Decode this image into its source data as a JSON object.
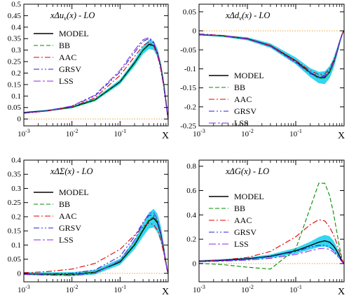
{
  "figure": {
    "x_axis_label": "X",
    "band_color": "#33d6f0",
    "model_color": "#000000"
  },
  "chart_data": [
    {
      "type": "line",
      "title": "xΔu_v(x) - LO",
      "title_parts": {
        "pre": "xΔu",
        "sub": "v",
        "post": "(x) - LO"
      },
      "xscale": "log",
      "xlim": [
        0.001,
        1
      ],
      "ylim": [
        -0.03,
        0.5
      ],
      "yticks": [
        0,
        0.05,
        0.1,
        0.15,
        0.2,
        0.25,
        0.3,
        0.35,
        0.4,
        0.45,
        0.5
      ],
      "ytick_labels": [
        "0",
        "0.05",
        "0.1",
        "0.15",
        "0.2",
        "0.25",
        "0.3",
        "0.35",
        "0.4",
        "0.45",
        "0.5"
      ],
      "xlabel": "X",
      "legend_position": "left",
      "reference_line": 0,
      "x": [
        0.001,
        0.003,
        0.01,
        0.03,
        0.1,
        0.2,
        0.3,
        0.4,
        0.5,
        0.6,
        0.7,
        0.8,
        0.9,
        0.95,
        1.0
      ],
      "band": {
        "lower": [
          0.025,
          0.033,
          0.047,
          0.077,
          0.152,
          0.23,
          0.283,
          0.305,
          0.3,
          0.27,
          0.22,
          0.15,
          0.07,
          0.03,
          0.0
        ],
        "upper": [
          0.031,
          0.04,
          0.056,
          0.09,
          0.172,
          0.258,
          0.318,
          0.345,
          0.34,
          0.305,
          0.245,
          0.17,
          0.08,
          0.035,
          0.0
        ]
      },
      "series": [
        {
          "name": "MODEL",
          "color": "#000000",
          "dash": "",
          "values": [
            0.028,
            0.036,
            0.051,
            0.083,
            0.162,
            0.245,
            0.3,
            0.325,
            0.32,
            0.288,
            0.232,
            0.16,
            0.075,
            0.032,
            0.0
          ]
        },
        {
          "name": "BB",
          "color": "#008c00",
          "dash": "6,3",
          "values": [
            0.027,
            0.035,
            0.05,
            0.082,
            0.16,
            0.242,
            0.298,
            0.322,
            0.318,
            0.285,
            0.23,
            0.158,
            0.074,
            0.031,
            0.0
          ]
        },
        {
          "name": "AAC",
          "color": "#e00000",
          "dash": "8,3,2,3",
          "values": [
            0.025,
            0.034,
            0.052,
            0.092,
            0.19,
            0.272,
            0.32,
            0.335,
            0.318,
            0.275,
            0.215,
            0.145,
            0.068,
            0.028,
            0.0
          ]
        },
        {
          "name": "GRSV",
          "color": "#2222dd",
          "dash": "8,3,2,3,2,3",
          "values": [
            0.026,
            0.036,
            0.056,
            0.1,
            0.205,
            0.29,
            0.338,
            0.35,
            0.33,
            0.285,
            0.222,
            0.148,
            0.07,
            0.029,
            0.0
          ]
        },
        {
          "name": "LSS",
          "color": "#8a2be2",
          "dash": "10,3,3,3",
          "values": [
            0.025,
            0.035,
            0.057,
            0.104,
            0.212,
            0.3,
            0.345,
            0.355,
            0.335,
            0.288,
            0.225,
            0.15,
            0.07,
            0.029,
            0.0
          ]
        }
      ]
    },
    {
      "type": "line",
      "title": "xΔd_v(x) - LO",
      "title_parts": {
        "pre": "xΔd",
        "sub": "v",
        "post": "(x) - LO"
      },
      "xscale": "log",
      "xlim": [
        0.001,
        1
      ],
      "ylim": [
        -0.25,
        0.07
      ],
      "yticks": [
        -0.25,
        -0.2,
        -0.15,
        -0.1,
        -0.05,
        0,
        0.05
      ],
      "ytick_labels": [
        "-0.25",
        "-0.2",
        "-0.15",
        "-0.1",
        "-0.05",
        "0",
        "0.05"
      ],
      "xlabel": "X",
      "legend_position": "bottom-center",
      "reference_line": 0,
      "x": [
        0.001,
        0.003,
        0.01,
        0.03,
        0.1,
        0.2,
        0.3,
        0.4,
        0.5,
        0.6,
        0.7,
        0.8,
        0.9,
        0.95,
        1.0
      ],
      "band": {
        "lower": [
          -0.012,
          -0.016,
          -0.025,
          -0.045,
          -0.088,
          -0.122,
          -0.138,
          -0.14,
          -0.125,
          -0.1,
          -0.07,
          -0.04,
          -0.015,
          -0.005,
          0.0
        ],
        "upper": [
          -0.008,
          -0.011,
          -0.017,
          -0.033,
          -0.07,
          -0.098,
          -0.108,
          -0.106,
          -0.093,
          -0.072,
          -0.048,
          -0.025,
          -0.008,
          -0.002,
          0.0
        ]
      },
      "series": [
        {
          "name": "MODEL",
          "color": "#000000",
          "dash": "",
          "values": [
            -0.01,
            -0.013,
            -0.021,
            -0.039,
            -0.079,
            -0.11,
            -0.123,
            -0.123,
            -0.109,
            -0.086,
            -0.059,
            -0.032,
            -0.011,
            -0.004,
            0.0
          ]
        },
        {
          "name": "BB",
          "color": "#008c00",
          "dash": "6,3",
          "values": [
            -0.01,
            -0.014,
            -0.022,
            -0.04,
            -0.08,
            -0.112,
            -0.125,
            -0.124,
            -0.11,
            -0.087,
            -0.06,
            -0.033,
            -0.012,
            -0.004,
            0.0
          ]
        },
        {
          "name": "AAC",
          "color": "#e00000",
          "dash": "8,3,2,3",
          "values": [
            -0.008,
            -0.012,
            -0.02,
            -0.038,
            -0.078,
            -0.105,
            -0.115,
            -0.113,
            -0.1,
            -0.08,
            -0.055,
            -0.03,
            -0.01,
            -0.003,
            0.0
          ]
        },
        {
          "name": "GRSV",
          "color": "#2222dd",
          "dash": "8,3,2,3,2,3",
          "values": [
            -0.009,
            -0.013,
            -0.021,
            -0.04,
            -0.082,
            -0.11,
            -0.12,
            -0.118,
            -0.104,
            -0.083,
            -0.057,
            -0.031,
            -0.011,
            -0.004,
            0.0
          ]
        },
        {
          "name": "LSS",
          "color": "#8a2be2",
          "dash": "10,3,3,3",
          "values": [
            -0.009,
            -0.013,
            -0.022,
            -0.041,
            -0.084,
            -0.113,
            -0.123,
            -0.12,
            -0.106,
            -0.084,
            -0.058,
            -0.031,
            -0.011,
            -0.004,
            0.0
          ]
        }
      ]
    },
    {
      "type": "line",
      "title": "xΔΣ(x) - LO",
      "title_parts": {
        "pre": "xΔΣ(x) - LO",
        "sub": "",
        "post": ""
      },
      "xscale": "log",
      "xlim": [
        0.001,
        1
      ],
      "ylim": [
        -0.03,
        0.4
      ],
      "yticks": [
        0,
        0.05,
        0.1,
        0.15,
        0.2,
        0.25,
        0.3,
        0.35,
        0.4
      ],
      "ytick_labels": [
        "0",
        "0.05",
        "0.1",
        "0.15",
        "0.2",
        "0.25",
        "0.3",
        "0.35",
        "0.4"
      ],
      "xlabel": "X",
      "legend_position": "left",
      "reference_line": 0,
      "x": [
        0.001,
        0.003,
        0.01,
        0.03,
        0.1,
        0.2,
        0.3,
        0.4,
        0.5,
        0.6,
        0.7,
        0.8,
        0.9,
        0.95,
        1.0
      ],
      "band": {
        "lower": [
          -0.006,
          -0.008,
          -0.01,
          -0.004,
          0.03,
          0.085,
          0.13,
          0.158,
          0.162,
          0.145,
          0.112,
          0.07,
          0.028,
          0.01,
          0.0
        ],
        "upper": [
          0.004,
          0.004,
          0.004,
          0.012,
          0.052,
          0.117,
          0.175,
          0.215,
          0.228,
          0.21,
          0.168,
          0.11,
          0.046,
          0.018,
          0.0
        ]
      },
      "series": [
        {
          "name": "MODEL",
          "color": "#000000",
          "dash": "",
          "values": [
            -0.002,
            -0.003,
            -0.004,
            0.004,
            0.04,
            0.1,
            0.152,
            0.186,
            0.195,
            0.178,
            0.14,
            0.09,
            0.037,
            0.014,
            0.0
          ]
        },
        {
          "name": "BB",
          "color": "#008c00",
          "dash": "6,3",
          "values": [
            -0.003,
            -0.004,
            -0.004,
            0.005,
            0.042,
            0.104,
            0.156,
            0.19,
            0.2,
            0.183,
            0.144,
            0.093,
            0.038,
            0.014,
            0.0
          ]
        },
        {
          "name": "AAC",
          "color": "#e00000",
          "dash": "8,3,2,3",
          "values": [
            0.002,
            0.006,
            0.015,
            0.035,
            0.085,
            0.135,
            0.165,
            0.178,
            0.172,
            0.152,
            0.118,
            0.076,
            0.031,
            0.011,
            0.0
          ]
        },
        {
          "name": "GRSV",
          "color": "#2222dd",
          "dash": "8,3,2,3,2,3",
          "values": [
            -0.002,
            -0.002,
            0.0,
            0.012,
            0.06,
            0.13,
            0.18,
            0.205,
            0.205,
            0.183,
            0.142,
            0.09,
            0.036,
            0.013,
            0.0
          ]
        },
        {
          "name": "LSS",
          "color": "#8a2be2",
          "dash": "10,3,3,3",
          "values": [
            -0.004,
            -0.006,
            -0.008,
            0.0,
            0.045,
            0.118,
            0.178,
            0.212,
            0.215,
            0.19,
            0.146,
            0.092,
            0.037,
            0.013,
            0.0
          ]
        }
      ]
    },
    {
      "type": "line",
      "title": "xΔG(x) - LO",
      "title_parts": {
        "pre": "xΔG(x) - LO",
        "sub": "",
        "post": ""
      },
      "xscale": "log",
      "xlim": [
        0.001,
        1
      ],
      "ylim": [
        -0.15,
        0.85
      ],
      "yticks": [
        0,
        0.2,
        0.4,
        0.6,
        0.8
      ],
      "ytick_labels": [
        "0",
        "0.2",
        "0.4",
        "0.6",
        "0.8"
      ],
      "xlabel": "X",
      "legend_position": "left",
      "reference_line": 0,
      "x": [
        0.001,
        0.003,
        0.01,
        0.03,
        0.1,
        0.2,
        0.3,
        0.4,
        0.5,
        0.6,
        0.7,
        0.8,
        0.9,
        0.95,
        1.0
      ],
      "band": {
        "lower": [
          0.012,
          0.018,
          0.028,
          0.045,
          0.082,
          0.115,
          0.135,
          0.14,
          0.128,
          0.105,
          0.076,
          0.046,
          0.018,
          0.007,
          0.0
        ],
        "upper": [
          0.028,
          0.036,
          0.05,
          0.075,
          0.128,
          0.18,
          0.218,
          0.235,
          0.225,
          0.19,
          0.14,
          0.085,
          0.032,
          0.012,
          0.0
        ]
      },
      "series": [
        {
          "name": "MODEL",
          "color": "#000000",
          "dash": "",
          "values": [
            0.02,
            0.027,
            0.039,
            0.06,
            0.105,
            0.148,
            0.176,
            0.187,
            0.176,
            0.147,
            0.108,
            0.065,
            0.025,
            0.009,
            0.0
          ]
        },
        {
          "name": "BB",
          "color": "#008c00",
          "dash": "6,3",
          "values": [
            0.002,
            -0.008,
            -0.03,
            -0.045,
            0.12,
            0.46,
            0.66,
            0.66,
            0.56,
            0.42,
            0.27,
            0.14,
            0.045,
            0.015,
            0.0
          ]
        },
        {
          "name": "AAC",
          "color": "#e00000",
          "dash": "8,3,2,3",
          "values": [
            0.02,
            0.03,
            0.05,
            0.1,
            0.22,
            0.32,
            0.36,
            0.35,
            0.3,
            0.24,
            0.17,
            0.1,
            0.037,
            0.013,
            0.0
          ]
        },
        {
          "name": "GRSV",
          "color": "#2222dd",
          "dash": "8,3,2,3,2,3",
          "values": [
            0.018,
            0.025,
            0.037,
            0.058,
            0.1,
            0.135,
            0.15,
            0.15,
            0.136,
            0.11,
            0.079,
            0.047,
            0.018,
            0.006,
            0.0
          ]
        },
        {
          "name": "LSS",
          "color": "#8a2be2",
          "dash": "10,3,3,3",
          "values": [
            0.015,
            0.02,
            0.028,
            0.043,
            0.075,
            0.105,
            0.122,
            0.126,
            0.116,
            0.095,
            0.069,
            0.041,
            0.016,
            0.006,
            0.0
          ]
        }
      ]
    }
  ]
}
